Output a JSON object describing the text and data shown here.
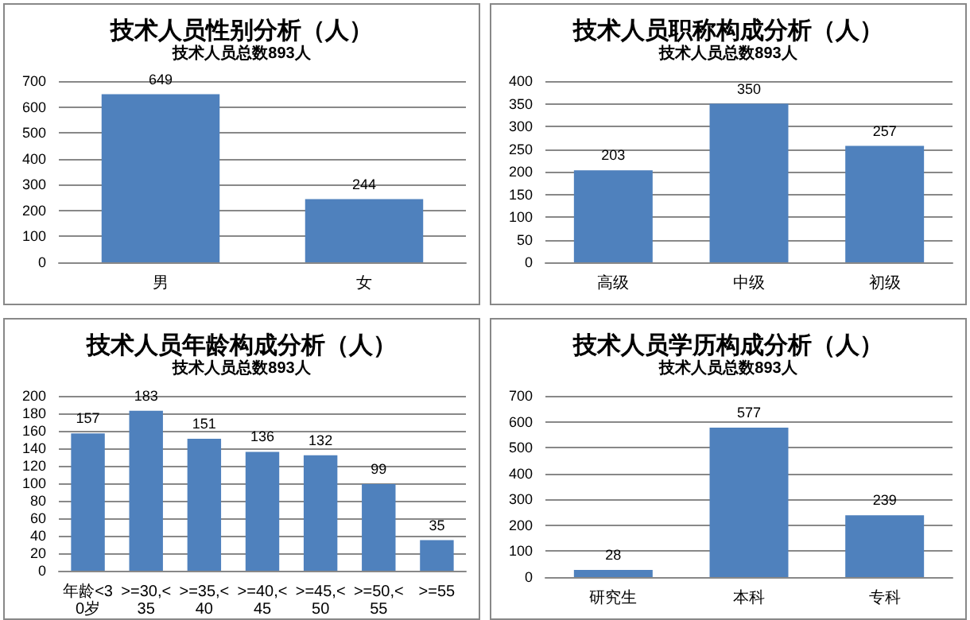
{
  "chart_data": [
    {
      "type": "bar",
      "title": "技术人员性别分析（人）",
      "subtitle": "技术人员总数893人",
      "categories": [
        "男",
        "女"
      ],
      "values": [
        649,
        244
      ],
      "color": "#4f81bd",
      "ylim": [
        0,
        700
      ],
      "yticks": [
        0,
        100,
        200,
        300,
        400,
        500,
        600,
        700
      ],
      "grid": "y",
      "data_labels": true
    },
    {
      "type": "bar",
      "title": "技术人员职称构成分析（人）",
      "subtitle": "技术人员总数893人",
      "categories": [
        "高级",
        "中级",
        "初级"
      ],
      "values": [
        203,
        350,
        257
      ],
      "color": "#4f81bd",
      "ylim": [
        0,
        400
      ],
      "yticks": [
        0,
        50,
        100,
        150,
        200,
        250,
        300,
        350,
        400
      ],
      "grid": "y",
      "data_labels": true
    },
    {
      "type": "bar",
      "title": "技术人员年龄构成分析（人）",
      "subtitle": "技术人员总数893人",
      "categories": [
        "年龄<30岁",
        ">=30,<35",
        ">=35,<40",
        ">=40,<45",
        ">=45,<50",
        ">=50,<55",
        ">=55"
      ],
      "values": [
        157,
        183,
        151,
        136,
        132,
        99,
        35
      ],
      "color": "#4f81bd",
      "ylim": [
        0,
        200
      ],
      "yticks": [
        0,
        20,
        40,
        60,
        80,
        100,
        120,
        140,
        160,
        180,
        200
      ],
      "grid": "y",
      "data_labels": true
    },
    {
      "type": "bar",
      "title": "技术人员学历构成分析（人）",
      "subtitle": "技术人员总数893人",
      "categories": [
        "研究生",
        "本科",
        "专科"
      ],
      "values": [
        28,
        577,
        239
      ],
      "color": "#4f81bd",
      "ylim": [
        0,
        700
      ],
      "yticks": [
        0,
        100,
        200,
        300,
        400,
        500,
        600,
        700
      ],
      "grid": "y",
      "data_labels": true
    }
  ]
}
